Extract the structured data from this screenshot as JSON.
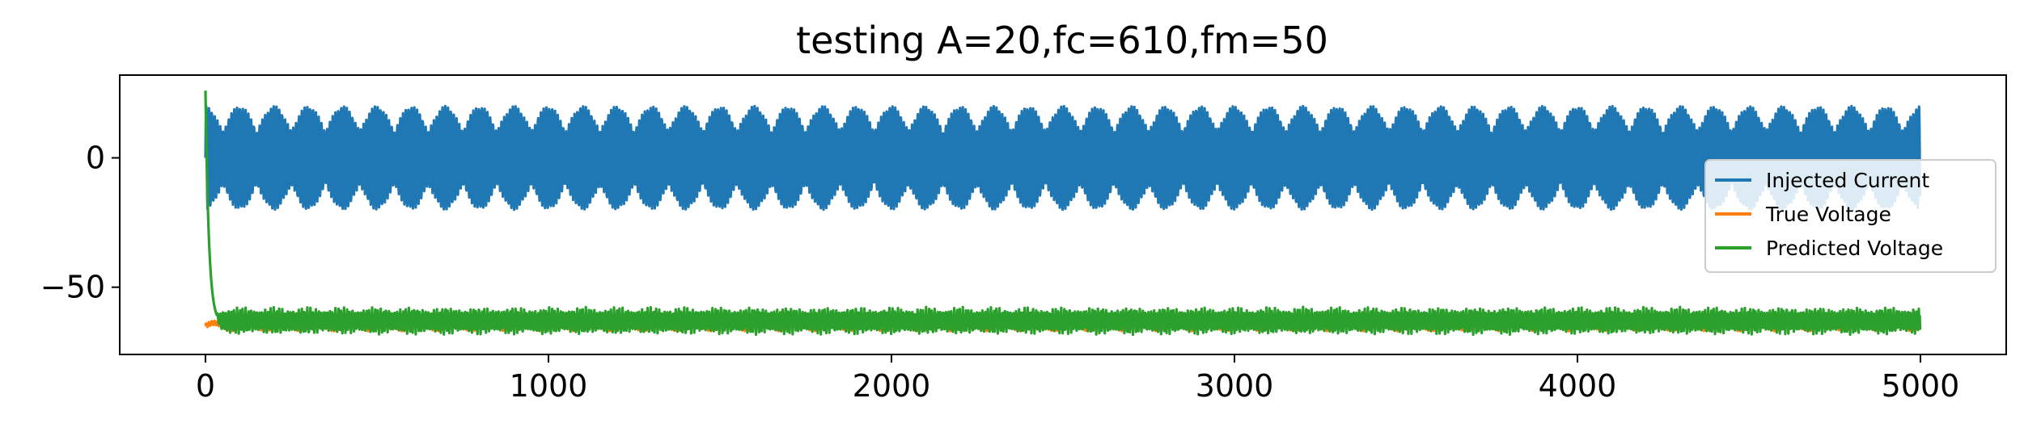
{
  "chart_data": {
    "type": "line",
    "title": "testing A=20,fc=610,fm=50",
    "xlabel": "",
    "ylabel": "",
    "xlim": [
      -250,
      5250
    ],
    "ylim": [
      -76,
      32
    ],
    "x_ticks": [
      0,
      1000,
      2000,
      3000,
      4000,
      5000
    ],
    "x_tick_labels": [
      "0",
      "1000",
      "2000",
      "3000",
      "4000",
      "5000"
    ],
    "y_ticks": [
      0,
      -50
    ],
    "y_tick_labels": [
      "0",
      "−50"
    ],
    "grid": false,
    "legend_position": "center-right",
    "n_points": 5000,
    "series": [
      {
        "name": "Injected Current",
        "color": "#1f77b4",
        "description": "AM-modulated sinusoid, carrier fc=610, modulation fm=50, peak about 20, centered at 0",
        "center": 0,
        "amplitude": 20,
        "modulation_period": 100,
        "carrier_period": 8.2
      },
      {
        "name": "True Voltage",
        "color": "#ff7f0e",
        "description": "nearly constant around -65 with small ripple",
        "center": -65,
        "amplitude": 2
      },
      {
        "name": "Predicted Voltage",
        "color": "#2ca02c",
        "description": "starts near 26, drops sharply to about -62 within first ~40 samples, then oscillates between about -70 and -55",
        "start_value": 26,
        "center": -63,
        "amplitude": 6
      }
    ]
  }
}
